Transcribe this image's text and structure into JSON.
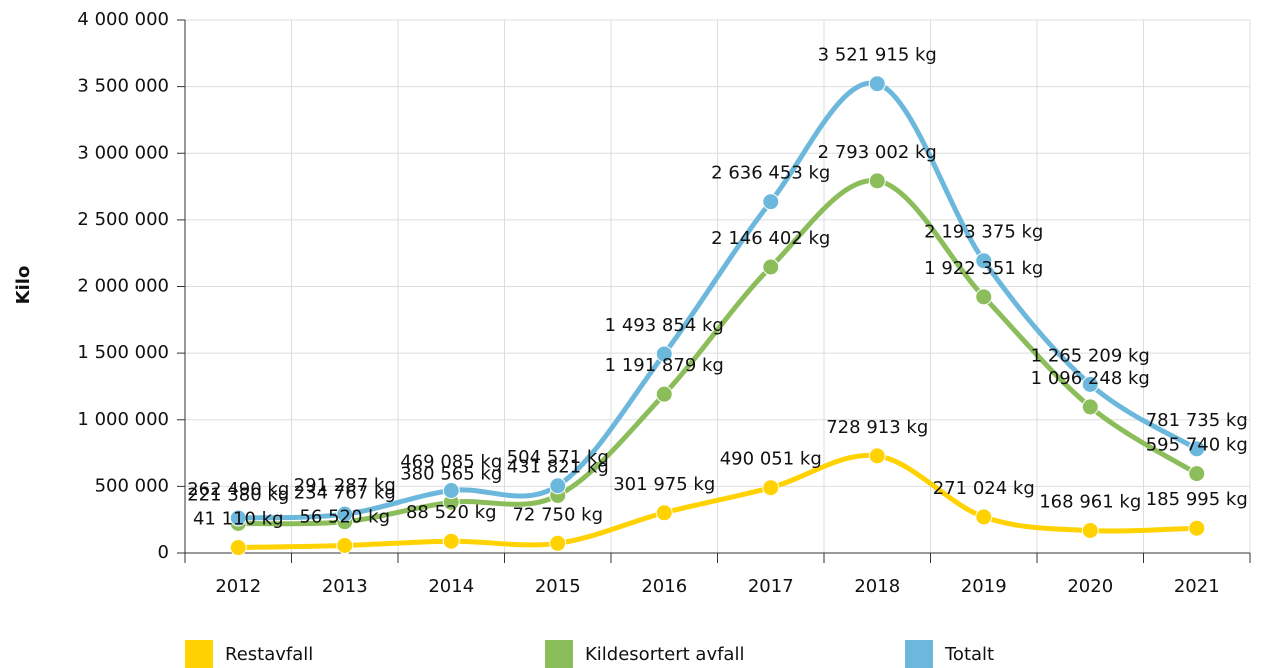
{
  "chart_data": {
    "type": "line",
    "y_label": "Kilo",
    "categories": [
      "2012",
      "2013",
      "2014",
      "2015",
      "2016",
      "2017",
      "2018",
      "2019",
      "2020",
      "2021"
    ],
    "series": [
      {
        "name": "Restavfall",
        "color": "#ffd200",
        "values": [
          41110,
          56520,
          88520,
          72750,
          301975,
          490051,
          728913,
          271024,
          168961,
          185995
        ],
        "value_labels": [
          "41 110 kg",
          "56 520 kg",
          "88 520 kg",
          "72 750 kg",
          "301 975 kg",
          "490 051 kg",
          "728 913 kg",
          "271 024 kg",
          "168 961 kg",
          "185 995 kg"
        ]
      },
      {
        "name": "Kildesortert avfall",
        "color": "#8cbd5b",
        "values": [
          221380,
          234767,
          380565,
          431821,
          1191879,
          2146402,
          2793002,
          1922351,
          1096248,
          595740
        ],
        "value_labels": [
          "221 380 kg",
          "234 767 kg",
          "380 565 kg",
          "431 821 kg",
          "1 191 879 kg",
          "2 146 402 kg",
          "2 793 002 kg",
          "1 922 351 kg",
          "1 096 248 kg",
          "595 740 kg"
        ]
      },
      {
        "name": "Totalt",
        "color": "#6cb8dc",
        "values": [
          262490,
          291287,
          469085,
          504571,
          1493854,
          2636453,
          3521915,
          2193375,
          1265209,
          781735
        ],
        "value_labels": [
          "262 490 kg",
          "291 287 kg",
          "469 085 kg",
          "504 571 kg",
          "1 493 854 kg",
          "2 636 453 kg",
          "3 521 915 kg",
          "2 193 375 kg",
          "1 265 209 kg",
          "781 735 kg"
        ]
      }
    ],
    "ylim": [
      0,
      4000000
    ],
    "yticks": [
      0,
      {
        "value": 500000,
        "label": "500 000"
      },
      {
        "value": 1000000,
        "label": "1 000 000"
      },
      {
        "value": 1500000,
        "label": "1 500 000"
      },
      {
        "value": 2000000,
        "label": "2 000 000"
      },
      {
        "value": 2500000,
        "label": "2 500 000"
      },
      {
        "value": 3000000,
        "label": "3 000 000"
      },
      {
        "value": 3500000,
        "label": "3 500 000"
      },
      {
        "value": 4000000,
        "label": "4 000 000"
      }
    ],
    "grid": true,
    "legend": "bottom"
  }
}
